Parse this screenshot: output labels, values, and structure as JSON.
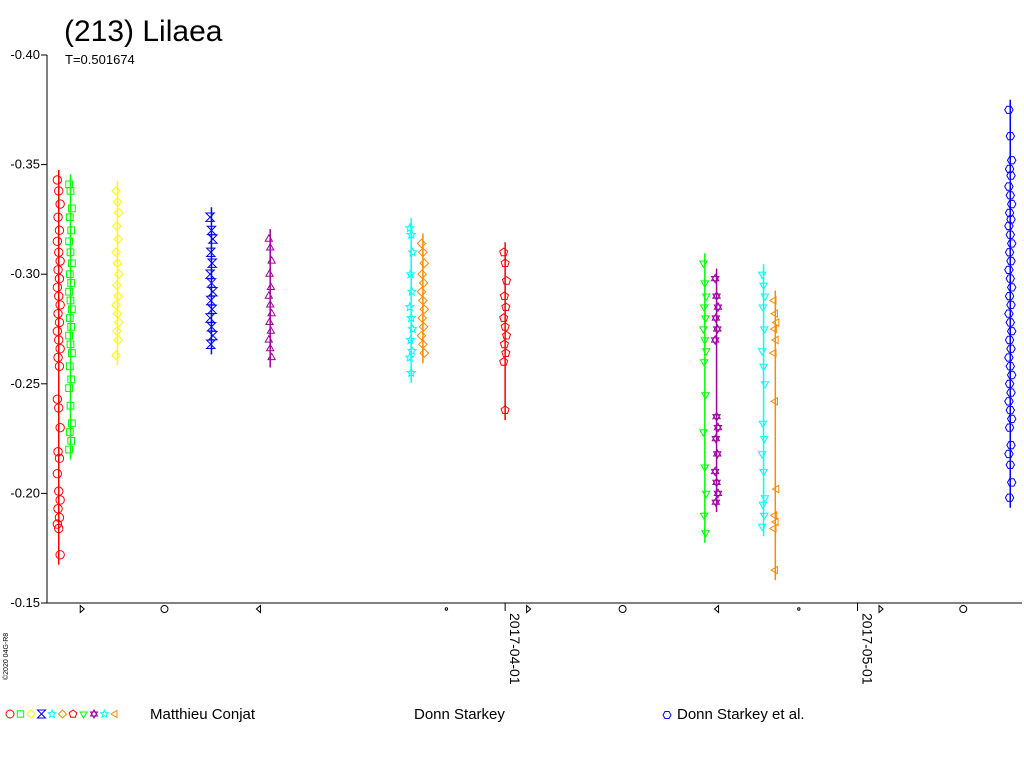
{
  "chart_data": {
    "type": "scatter",
    "title": "(213) Lilaea",
    "subtitle": "T=0.501674",
    "copyright": "©2020 04G-R8",
    "y_axis": {
      "ylim": [
        -0.4,
        -0.15
      ],
      "inverted": true,
      "ticks": [
        "-0.40",
        "-0.35",
        "-0.30",
        "-0.25",
        "-0.20",
        "-0.15"
      ]
    },
    "x_axis": {
      "type": "date",
      "xlim": [
        "2017-02-21",
        "2017-05-15"
      ],
      "date_ticks": [
        "2017-04-01",
        "2017-05-01"
      ],
      "phase_marks": [
        {
          "date": "2017-02-24",
          "symbol": "first-quarter"
        },
        {
          "date": "2017-03-03",
          "symbol": "full"
        },
        {
          "date": "2017-03-11",
          "symbol": "last-quarter"
        },
        {
          "date": "2017-03-27",
          "symbol": "new"
        },
        {
          "date": "2017-04-03",
          "symbol": "first-quarter"
        },
        {
          "date": "2017-04-11",
          "symbol": "full"
        },
        {
          "date": "2017-04-19",
          "symbol": "last-quarter"
        },
        {
          "date": "2017-04-26",
          "symbol": "new"
        },
        {
          "date": "2017-05-03",
          "symbol": "first-quarter"
        },
        {
          "date": "2017-05-10",
          "symbol": "full"
        }
      ]
    },
    "grid": false,
    "legend": [
      {
        "label": "Matthieu Conjat",
        "symbols": [
          "circle",
          "square",
          "diamond",
          "bowtie",
          "star",
          "diamond",
          "pentagon",
          "triangle-down",
          "triangle-tri",
          "star",
          "triangle-left"
        ],
        "colors": [
          "#ff0000",
          "#00ff00",
          "#ffff00",
          "#0000ff",
          "#00ffff",
          "#ff8800",
          "#ff0000",
          "#00ff00",
          "#a000a0",
          "#00ffff",
          "#ff8800"
        ]
      },
      {
        "label": "Donn Starkey",
        "symbols": [],
        "colors": []
      },
      {
        "label": "Donn Starkey et al.",
        "symbols": [
          "hexagon"
        ],
        "colors": [
          "#0000ff"
        ]
      }
    ],
    "series": [
      {
        "date": "2017-02-22",
        "color": "#ff0000",
        "symbol": "circle",
        "y": [
          -0.343,
          -0.338,
          -0.332,
          -0.326,
          -0.32,
          -0.315,
          -0.31,
          -0.306,
          -0.302,
          -0.298,
          -0.294,
          -0.29,
          -0.286,
          -0.282,
          -0.278,
          -0.274,
          -0.27,
          -0.266,
          -0.262,
          -0.258,
          -0.243,
          -0.239,
          -0.23,
          -0.219,
          -0.216,
          -0.209,
          -0.201,
          -0.197,
          -0.193,
          -0.189,
          -0.186,
          -0.184,
          -0.172
        ]
      },
      {
        "date": "2017-02-23",
        "color": "#00ff00",
        "symbol": "square",
        "y": [
          -0.341,
          -0.338,
          -0.33,
          -0.326,
          -0.32,
          -0.315,
          -0.31,
          -0.305,
          -0.3,
          -0.296,
          -0.292,
          -0.288,
          -0.284,
          -0.28,
          -0.276,
          -0.272,
          -0.268,
          -0.264,
          -0.258,
          -0.252,
          -0.248,
          -0.24,
          -0.232,
          -0.228,
          -0.224,
          -0.22
        ]
      },
      {
        "date": "2017-02-27",
        "color": "#ffff00",
        "symbol": "diamond",
        "y": [
          -0.338,
          -0.333,
          -0.328,
          -0.322,
          -0.316,
          -0.31,
          -0.305,
          -0.3,
          -0.295,
          -0.29,
          -0.286,
          -0.282,
          -0.278,
          -0.274,
          -0.27,
          -0.263
        ]
      },
      {
        "date": "2017-03-07",
        "color": "#0000ff",
        "symbol": "bowtie",
        "y": [
          -0.326,
          -0.32,
          -0.316,
          -0.31,
          -0.305,
          -0.3,
          -0.296,
          -0.292,
          -0.288,
          -0.284,
          -0.28,
          -0.276,
          -0.272,
          -0.268
        ]
      },
      {
        "date": "2017-03-12",
        "color": "#a000a0",
        "symbol": "triangle-up",
        "y": [
          -0.316,
          -0.312,
          -0.306,
          -0.3,
          -0.294,
          -0.29,
          -0.286,
          -0.282,
          -0.278,
          -0.274,
          -0.27,
          -0.266,
          -0.262
        ]
      },
      {
        "date": "2017-03-24",
        "color": "#00ffff",
        "symbol": "star",
        "y": [
          -0.321,
          -0.318,
          -0.31,
          -0.3,
          -0.292,
          -0.285,
          -0.28,
          -0.275,
          -0.27,
          -0.265,
          -0.262,
          -0.255
        ]
      },
      {
        "date": "2017-03-25",
        "color": "#ff8800",
        "symbol": "diamond",
        "y": [
          -0.314,
          -0.31,
          -0.305,
          -0.3,
          -0.296,
          -0.292,
          -0.288,
          -0.284,
          -0.28,
          -0.276,
          -0.272,
          -0.268,
          -0.264
        ]
      },
      {
        "date": "2017-04-01",
        "color": "#ff0000",
        "symbol": "pentagon",
        "y": [
          -0.31,
          -0.305,
          -0.297,
          -0.29,
          -0.285,
          -0.28,
          -0.276,
          -0.272,
          -0.268,
          -0.264,
          -0.26,
          -0.238
        ]
      },
      {
        "date": "2017-04-18",
        "color": "#00ff00",
        "symbol": "triangle-down",
        "y": [
          -0.305,
          -0.296,
          -0.29,
          -0.285,
          -0.28,
          -0.275,
          -0.27,
          -0.265,
          -0.26,
          -0.245,
          -0.228,
          -0.212,
          -0.2,
          -0.19,
          -0.182
        ]
      },
      {
        "date": "2017-04-19",
        "color": "#a000a0",
        "symbol": "triangle-tri",
        "y": [
          -0.298,
          -0.29,
          -0.285,
          -0.28,
          -0.275,
          -0.27,
          -0.235,
          -0.23,
          -0.225,
          -0.218,
          -0.21,
          -0.205,
          -0.2,
          -0.196
        ]
      },
      {
        "date": "2017-04-23",
        "color": "#00ffff",
        "symbol": "triangle-down",
        "y": [
          -0.3,
          -0.295,
          -0.29,
          -0.285,
          -0.275,
          -0.265,
          -0.258,
          -0.25,
          -0.232,
          -0.225,
          -0.218,
          -0.21,
          -0.198,
          -0.195,
          -0.19,
          -0.185
        ]
      },
      {
        "date": "2017-04-24",
        "color": "#ff8800",
        "symbol": "triangle-left",
        "y": [
          -0.288,
          -0.282,
          -0.278,
          -0.275,
          -0.27,
          -0.264,
          -0.242,
          -0.202,
          -0.19,
          -0.187,
          -0.184,
          -0.165
        ]
      },
      {
        "date": "2017-05-14",
        "color": "#0000ff",
        "symbol": "hexagon",
        "y": [
          -0.375,
          -0.363,
          -0.352,
          -0.348,
          -0.345,
          -0.34,
          -0.336,
          -0.332,
          -0.328,
          -0.325,
          -0.322,
          -0.318,
          -0.314,
          -0.31,
          -0.306,
          -0.302,
          -0.298,
          -0.294,
          -0.29,
          -0.286,
          -0.282,
          -0.278,
          -0.274,
          -0.27,
          -0.266,
          -0.262,
          -0.258,
          -0.254,
          -0.25,
          -0.246,
          -0.242,
          -0.238,
          -0.234,
          -0.23,
          -0.222,
          -0.218,
          -0.213,
          -0.205,
          -0.198
        ]
      }
    ]
  }
}
